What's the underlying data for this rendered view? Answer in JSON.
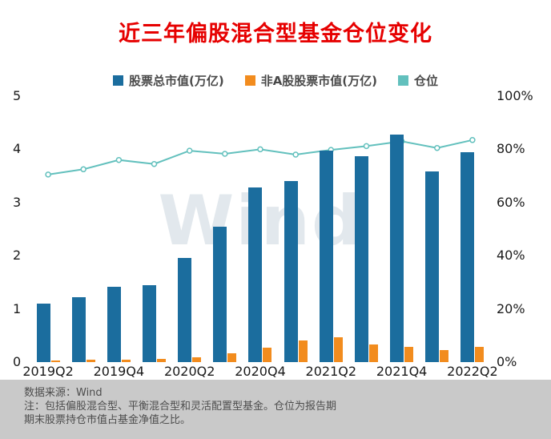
{
  "title": "近三年偏股混合型基金仓位变化",
  "watermark": "Wind",
  "legend": [
    {
      "label": "股票总市值(万亿)",
      "color": "#1b6d9e",
      "type": "bar"
    },
    {
      "label": "非A股股票市值(万亿)",
      "color": "#f28c1e",
      "type": "bar"
    },
    {
      "label": "仓位",
      "color": "#62c0bd",
      "type": "line"
    }
  ],
  "footer": {
    "source": "数据来源：Wind",
    "note_line1": "注：包括偏股混合型、平衡混合型和灵活配置型基金。仓位为报告期",
    "note_line2": "期末股票持仓市值占基金净值之比。"
  },
  "chart_data": {
    "type": "bar",
    "subtype": "grouped bars with overlay line",
    "categories": [
      "2019Q2",
      "2019Q3",
      "2019Q4",
      "2020Q1",
      "2020Q2",
      "2020Q3",
      "2020Q4",
      "2021Q1",
      "2021Q2",
      "2021Q3",
      "2021Q4",
      "2022Q1",
      "2022Q2"
    ],
    "x_tick_labels": [
      "2019Q2",
      "2019Q4",
      "2020Q2",
      "2020Q4",
      "2021Q2",
      "2021Q4",
      "2022Q2"
    ],
    "series": [
      {
        "name": "股票总市值(万亿)",
        "type": "bar",
        "axis": "left",
        "color": "#1b6d9e",
        "values": [
          1.1,
          1.22,
          1.42,
          1.45,
          1.96,
          2.54,
          3.28,
          3.4,
          3.97,
          3.87,
          4.27,
          3.58,
          3.95
        ]
      },
      {
        "name": "非A股股票市值(万亿)",
        "type": "bar",
        "axis": "left",
        "color": "#f28c1e",
        "values": [
          0.03,
          0.04,
          0.05,
          0.06,
          0.09,
          0.16,
          0.27,
          0.4,
          0.46,
          0.33,
          0.28,
          0.22,
          0.29
        ]
      },
      {
        "name": "仓位",
        "type": "line",
        "axis": "right",
        "color": "#62c0bd",
        "values": [
          70.5,
          72.5,
          76,
          74.5,
          79.5,
          78.3,
          80,
          78,
          79.8,
          81.2,
          83,
          80.5,
          83.5
        ]
      }
    ],
    "left_axis": {
      "min": 0,
      "max": 5,
      "ticks": [
        "0",
        "1",
        "2",
        "3",
        "4",
        "5"
      ]
    },
    "right_axis": {
      "min": 0,
      "max": 100,
      "ticks": [
        "0%",
        "20%",
        "40%",
        "60%",
        "80%",
        "100%"
      ]
    },
    "grid": false,
    "legend_position": "top"
  }
}
